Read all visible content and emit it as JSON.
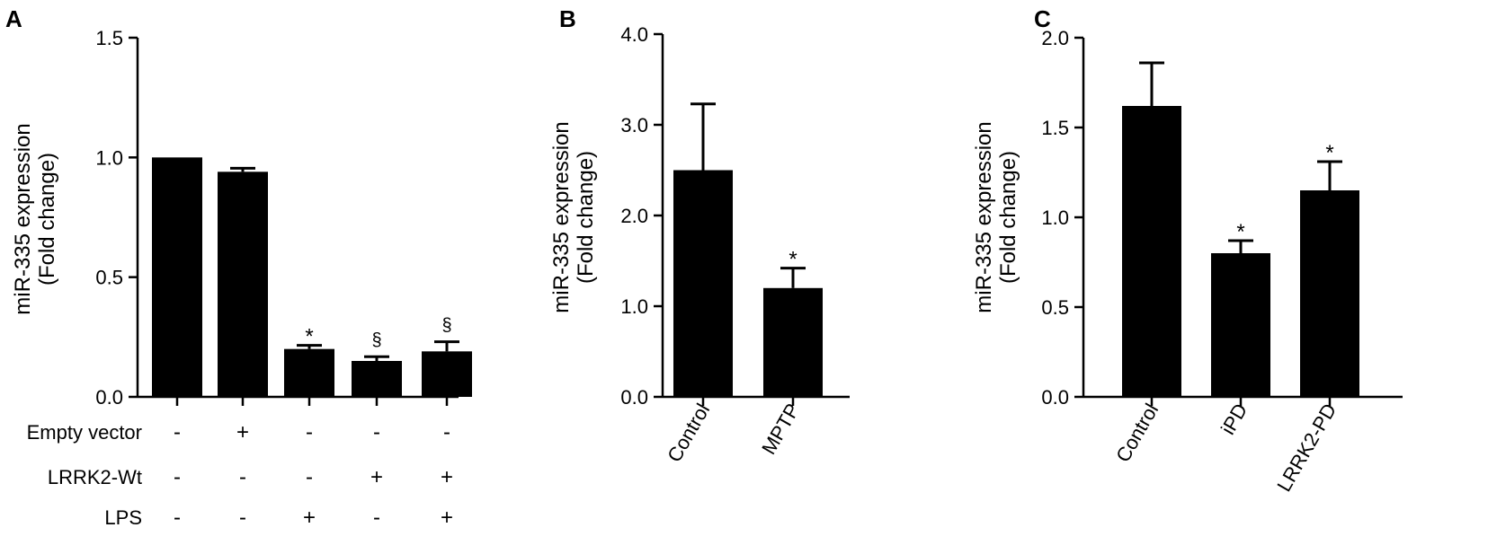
{
  "chart_data": [
    {
      "type": "bar",
      "panel": "A",
      "ylabel_line1": "miR-335 expression",
      "ylabel_line2": "(Fold change)",
      "ylim": [
        0,
        1.5
      ],
      "yticks": [
        "0.0",
        "0.5",
        "1.0",
        "1.5"
      ],
      "values": [
        1.0,
        0.94,
        0.2,
        0.15,
        0.19
      ],
      "errors": [
        0.0,
        0.015,
        0.015,
        0.018,
        0.04
      ],
      "significance": [
        "",
        "",
        "*",
        "§",
        "§"
      ],
      "conditions": [
        {
          "label": "Empty vector",
          "signs": [
            "-",
            "+",
            "-",
            "-",
            "-"
          ]
        },
        {
          "label": "LRRK2-Wt",
          "signs": [
            "-",
            "-",
            "-",
            "+",
            "+"
          ]
        },
        {
          "label": "LPS",
          "signs": [
            "-",
            "-",
            "+",
            "-",
            "+"
          ]
        }
      ],
      "grid": false
    },
    {
      "type": "bar",
      "panel": "B",
      "ylabel_line1": "miR-335 expression",
      "ylabel_line2": "(Fold change)",
      "ylim": [
        0,
        4.0
      ],
      "yticks": [
        "0.0",
        "1.0",
        "2.0",
        "3.0",
        "4.0"
      ],
      "categories": [
        "Control",
        "MPTP"
      ],
      "values": [
        2.5,
        1.2
      ],
      "errors": [
        0.73,
        0.22
      ],
      "significance": [
        "",
        "*"
      ],
      "grid": false
    },
    {
      "type": "bar",
      "panel": "C",
      "ylabel_line1": "miR-335 expression",
      "ylabel_line2": "(Fold change)",
      "ylim": [
        0,
        2.0
      ],
      "yticks": [
        "0.0",
        "0.5",
        "1.0",
        "1.5",
        "2.0"
      ],
      "categories": [
        "Control",
        "iPD",
        "LRRK2-PD"
      ],
      "values": [
        1.62,
        0.8,
        1.15
      ],
      "errors": [
        0.24,
        0.07,
        0.16
      ],
      "significance": [
        "",
        "*",
        "*"
      ],
      "grid": false
    }
  ]
}
